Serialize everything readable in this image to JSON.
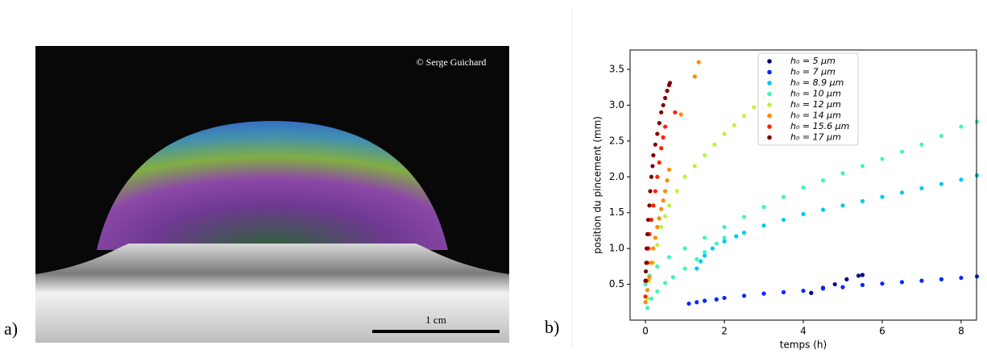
{
  "photo": {
    "label": "a)",
    "credit": "© Serge Guichard",
    "scale_label": "1 cm"
  },
  "chart_label": "b)",
  "chart_data": {
    "type": "scatter",
    "xlabel": "temps (h)",
    "ylabel": "position du pincement (mm)",
    "xlim": [
      -0.39,
      8.39
    ],
    "ylim": [
      0.0,
      3.77
    ],
    "xticks": [
      0,
      2,
      4,
      6,
      8
    ],
    "yticks": [
      0.5,
      {
        "value": 1,
        "label": "1.0"
      },
      1.5,
      {
        "value": 2,
        "label": "2.0"
      },
      2.5,
      {
        "value": 3,
        "label": "3.0"
      },
      3.5
    ],
    "legend": "upper center",
    "series": [
      {
        "name": "h₀ = 5 μm",
        "color": "#00007f",
        "x": [
          4.2,
          4.5,
          4.8,
          5.1,
          5.4,
          5.5
        ],
        "values": [
          0.38,
          0.45,
          0.5,
          0.57,
          0.62,
          0.63
        ]
      },
      {
        "name": "h₀ = 7 μm",
        "color": "#0028ff",
        "x": [
          1.1,
          1.3,
          1.5,
          1.8,
          2,
          2.5,
          3,
          3.5,
          4,
          4.5,
          5,
          5.5,
          6,
          6.5,
          7,
          7.5,
          8,
          8.4
        ],
        "values": [
          0.23,
          0.25,
          0.27,
          0.29,
          0.31,
          0.34,
          0.37,
          0.39,
          0.41,
          0.44,
          0.46,
          0.49,
          0.51,
          0.53,
          0.55,
          0.57,
          0.59,
          0.61
        ]
      },
      {
        "name": "h₀ = 8.9 μm",
        "color": "#00c8f5",
        "x": [
          1.3,
          1.4,
          1.5,
          1.7,
          2,
          2.3,
          2.5,
          3,
          3.5,
          4,
          4.5,
          5,
          5.5,
          6,
          6.5,
          7,
          7.5,
          8,
          8.4
        ],
        "values": [
          0.72,
          0.82,
          0.9,
          1.0,
          1.1,
          1.17,
          1.22,
          1.32,
          1.4,
          1.48,
          1.54,
          1.6,
          1.66,
          1.72,
          1.78,
          1.84,
          1.9,
          1.96,
          2.02
        ]
      },
      {
        "name": "h₀ = 10 μm",
        "color": "#40f5c0",
        "x": [
          0,
          0.1,
          0.3,
          0.6,
          1,
          1.5,
          2,
          2.5,
          3,
          3.5,
          4,
          4.5,
          5,
          5.5,
          6,
          6.5,
          7,
          7.5,
          8,
          8.4,
          0.05,
          0.15,
          0.3,
          0.5,
          0.7,
          1,
          1.3,
          1.5,
          1.8,
          2
        ],
        "values": [
          0.5,
          0.62,
          0.75,
          0.88,
          1.0,
          1.15,
          1.3,
          1.44,
          1.58,
          1.72,
          1.85,
          1.95,
          2.05,
          2.15,
          2.25,
          2.35,
          2.45,
          2.57,
          2.7,
          2.77,
          0.17,
          0.3,
          0.4,
          0.52,
          0.6,
          0.72,
          0.85,
          0.95,
          1.07,
          1.15
        ]
      },
      {
        "name": "h₀ = 12 μm",
        "color": "#b8f53c",
        "x": [
          0.05,
          0.1,
          0.2,
          0.3,
          0.4,
          0.5,
          0.6,
          0.8,
          1,
          1.25,
          1.5,
          1.75,
          2,
          2.25,
          2.5,
          2.75,
          3,
          3.3
        ],
        "values": [
          0.3,
          0.55,
          0.8,
          1.05,
          1.3,
          1.45,
          1.6,
          1.8,
          2.0,
          2.15,
          2.3,
          2.45,
          2.6,
          2.72,
          2.85,
          2.97,
          3.1,
          3.25
        ]
      },
      {
        "name": "h₀ = 14 μm",
        "color": "#ff8c00",
        "x": [
          0,
          0.05,
          0.1,
          0.15,
          0.2,
          0.25,
          0.3,
          0.35,
          0.4,
          0.45,
          0.5,
          0.55,
          0.6,
          0.9,
          1.25,
          1.35
        ],
        "values": [
          0.25,
          0.42,
          0.6,
          0.8,
          1.0,
          1.15,
          1.3,
          1.42,
          1.55,
          1.67,
          1.8,
          1.95,
          2.1,
          2.87,
          3.4,
          3.6
        ]
      },
      {
        "name": "h₀ = 15.6 μm",
        "color": "#ff2000",
        "x": [
          0,
          0.03,
          0.05,
          0.08,
          0.1,
          0.15,
          0.2,
          0.25,
          0.3,
          0.35,
          0.4,
          0.45,
          0.5,
          0.75
        ],
        "values": [
          0.33,
          0.55,
          0.8,
          1.0,
          1.2,
          1.4,
          1.6,
          1.8,
          2.0,
          2.2,
          2.4,
          2.55,
          2.7,
          2.9
        ]
      },
      {
        "name": "h₀ = 17 μm",
        "color": "#800000",
        "x": [
          0,
          0.01,
          0.02,
          0.03,
          0.05,
          0.07,
          0.1,
          0.12,
          0.15,
          0.18,
          0.2,
          0.25,
          0.3,
          0.35,
          0.4,
          0.45,
          0.5,
          0.55,
          0.6,
          0.62
        ],
        "values": [
          0.55,
          0.68,
          0.8,
          1.0,
          1.2,
          1.4,
          1.6,
          1.8,
          2.0,
          2.15,
          2.3,
          2.45,
          2.6,
          2.75,
          2.9,
          3.0,
          3.1,
          3.2,
          3.28,
          3.31
        ]
      }
    ]
  }
}
